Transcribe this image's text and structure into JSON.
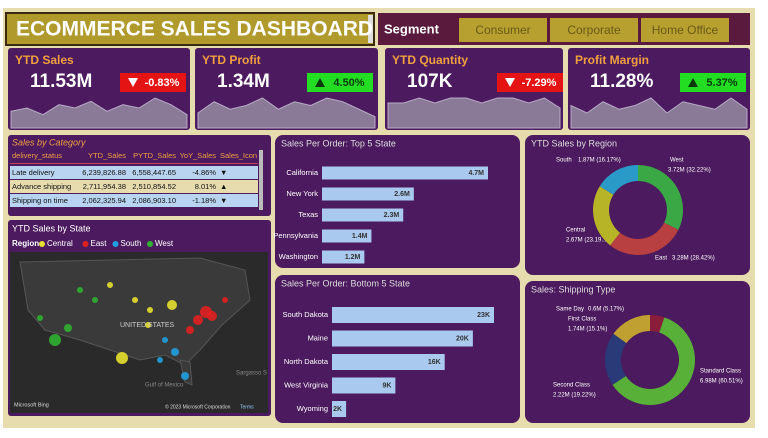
{
  "header": {
    "title": "ECOMMERCE SALES DASHBOARD",
    "slicer_title": "Segment",
    "slicer_options": [
      "Consumer",
      "Corporate",
      "Home Office"
    ]
  },
  "kpis": [
    {
      "title": "YTD Sales",
      "value": "11.53M",
      "delta": "-0.83%",
      "direction": "down",
      "trend": [
        5,
        6,
        4,
        7,
        6,
        8,
        5,
        7,
        6,
        9,
        7,
        4
      ]
    },
    {
      "title": "YTD Profit",
      "value": "1.34M",
      "delta": "4.50%",
      "direction": "up",
      "trend": [
        4,
        7,
        5,
        6,
        8,
        5,
        7,
        6,
        8,
        7,
        5,
        3
      ]
    },
    {
      "title": "YTD Quantity",
      "value": "107K",
      "delta": "-7.29%",
      "direction": "down",
      "trend": [
        5,
        5,
        6,
        5,
        6,
        6,
        5,
        6,
        6,
        5,
        6,
        4
      ]
    },
    {
      "title": "Profit Margin",
      "value": "11.28%",
      "delta": "5.37%",
      "direction": "up",
      "trend": [
        6,
        4,
        7,
        5,
        6,
        8,
        4,
        7,
        6,
        5,
        8,
        5
      ]
    }
  ],
  "table": {
    "title": "Sales by Category",
    "columns": [
      "delivery_status",
      "YTD_Sales",
      "PYTD_Sales",
      "YoY_Sales",
      "Sales_Icon"
    ],
    "rows": [
      [
        "Late delivery",
        "6,239,826.88",
        "6,558,447.65",
        "-4.86%",
        "▼"
      ],
      [
        "Advance shipping",
        "2,711,954.38",
        "2,510,854.52",
        "8.01%",
        "▲"
      ],
      [
        "Shipping on time",
        "2,062,325.94",
        "2,086,903.10",
        "-1.18%",
        "▼"
      ]
    ]
  },
  "map": {
    "title": "YTD Sales by State",
    "legend_title": "Region",
    "legend": [
      {
        "name": "Central",
        "color": "#e8e030"
      },
      {
        "name": "East",
        "color": "#e02020"
      },
      {
        "name": "South",
        "color": "#20a0e0"
      },
      {
        "name": "West",
        "color": "#30b030"
      }
    ],
    "country_label": "UNITED STATES",
    "sea_label": "Gulf of Mexico",
    "ocean_label": "Sargasso S",
    "logo": "Microsoft Bing",
    "copyright": "© 2023 Microsoft Corporation",
    "terms": "Terms"
  },
  "chart_data": [
    {
      "type": "hbar",
      "title": "Sales Per Order: Top 5 State",
      "categories": [
        "California",
        "New York",
        "Texas",
        "Pennsylvania",
        "Washington"
      ],
      "values": [
        4.7,
        2.6,
        2.3,
        1.4,
        1.2
      ],
      "value_labels": [
        "4.7M",
        "2.6M",
        "2.3M",
        "1.4M",
        "1.2M"
      ],
      "color": "#a9c9ee"
    },
    {
      "type": "hbar",
      "title": "Sales Per Order: Bottom 5 State",
      "categories": [
        "South Dakota",
        "Maine",
        "North Dakota",
        "West Virginia",
        "Wyoming"
      ],
      "values": [
        23,
        20,
        16,
        9,
        2
      ],
      "value_labels": [
        "23K",
        "20K",
        "16K",
        "9K",
        "2K"
      ],
      "color": "#a9c9ee"
    },
    {
      "type": "donut",
      "title": "YTD Sales by Region",
      "categories": [
        "West",
        "East",
        "Central",
        "South"
      ],
      "values": [
        32.22,
        28.42,
        23.19,
        16.17
      ],
      "value_labels": [
        "3.72M (32.22%)",
        "3.28M (28.42%)",
        "2.67M (23.19...",
        "1.87M (16.17%)"
      ],
      "colors": [
        "#3aa845",
        "#b84040",
        "#b8b428",
        "#2a9ac8"
      ]
    },
    {
      "type": "donut",
      "title": "Sales: Shipping Type",
      "categories": [
        "Same Day",
        "Standard Class",
        "Second Class",
        "First Class"
      ],
      "values": [
        5.17,
        60.51,
        19.22,
        15.1
      ],
      "value_labels": [
        "0.6M (5.17%)",
        "6.98M (60.51%)",
        "2.22M (19.22%)",
        "1.74M (15.1%)"
      ],
      "colors": [
        "#8a1e3a",
        "#58b038",
        "#2a3a78",
        "#c0a030"
      ]
    }
  ]
}
